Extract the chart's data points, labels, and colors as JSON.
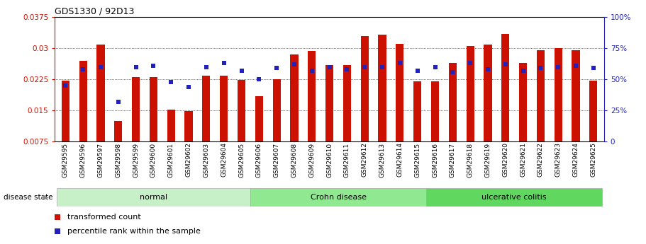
{
  "title": "GDS1330 / 92D13",
  "samples": [
    "GSM29595",
    "GSM29596",
    "GSM29597",
    "GSM29598",
    "GSM29599",
    "GSM29600",
    "GSM29601",
    "GSM29602",
    "GSM29603",
    "GSM29604",
    "GSM29605",
    "GSM29606",
    "GSM29607",
    "GSM29608",
    "GSM29609",
    "GSM29610",
    "GSM29611",
    "GSM29612",
    "GSM29613",
    "GSM29614",
    "GSM29615",
    "GSM29616",
    "GSM29617",
    "GSM29618",
    "GSM29619",
    "GSM29620",
    "GSM29621",
    "GSM29622",
    "GSM29623",
    "GSM29624",
    "GSM29625"
  ],
  "red_values": [
    0.0222,
    0.027,
    0.0308,
    0.0125,
    0.023,
    0.023,
    0.0152,
    0.0148,
    0.0233,
    0.0233,
    0.0223,
    0.0185,
    0.0225,
    0.0285,
    0.0293,
    0.026,
    0.026,
    0.033,
    0.0333,
    0.031,
    0.022,
    0.022,
    0.0265,
    0.0305,
    0.0308,
    0.0335,
    0.0265,
    0.0295,
    0.03,
    0.0295,
    0.0222
  ],
  "blue_pct": [
    45,
    58,
    60,
    32,
    60,
    61,
    48,
    44,
    60,
    63,
    57,
    50,
    59,
    62,
    57,
    60,
    58,
    60,
    60,
    63,
    57,
    60,
    56,
    63,
    58,
    62,
    57,
    59,
    60,
    61,
    59
  ],
  "groups": [
    {
      "label": "normal",
      "start": 0,
      "end": 11,
      "color": "#c8f0c8"
    },
    {
      "label": "Crohn disease",
      "start": 11,
      "end": 21,
      "color": "#90e890"
    },
    {
      "label": "ulcerative colitis",
      "start": 21,
      "end": 31,
      "color": "#60d860"
    }
  ],
  "ylim_left": [
    0.0075,
    0.0375
  ],
  "yticks_left": [
    0.0075,
    0.015,
    0.0225,
    0.03,
    0.0375
  ],
  "yticks_right": [
    0,
    25,
    50,
    75,
    100
  ],
  "bar_color": "#cc1100",
  "marker_color": "#2222bb",
  "bg_color": "#ffffff",
  "legend_items": [
    "transformed count",
    "percentile rank within the sample"
  ]
}
